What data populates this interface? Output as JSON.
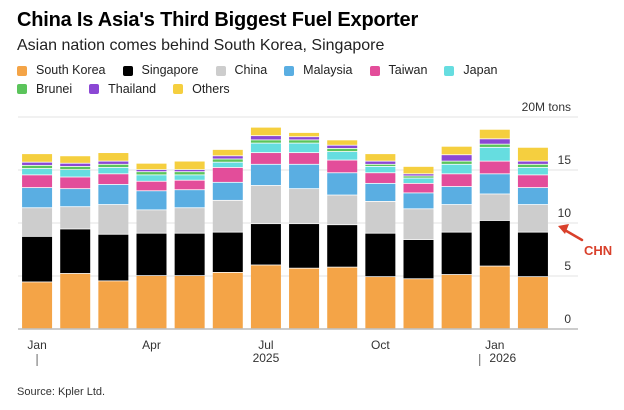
{
  "title": "China Is Asia's Third Biggest Fuel Exporter",
  "subtitle": "Asian nation comes behind South Korea, Singapore",
  "source": "Source: Kpler Ltd.",
  "annotation": "CHN",
  "colors": {
    "South Korea": "#f4a447",
    "Singapore": "#000000",
    "China": "#cdcdcd",
    "Malaysia": "#5aaee2",
    "Taiwan": "#e34d9a",
    "Japan": "#66dde0",
    "Brunei": "#5bc45b",
    "Thailand": "#8b47d4",
    "Others": "#f5cf3f",
    "annotation": "#d9402b"
  },
  "chart_data": {
    "type": "bar",
    "stacked": true,
    "unit_label": "20M tons",
    "ylim": [
      0,
      20
    ],
    "yticks": [
      "0",
      "5",
      "10",
      "15"
    ],
    "x_ticks": [
      {
        "label": "Jan",
        "index": 0
      },
      {
        "label": "Apr",
        "index": 3
      },
      {
        "label": "Jul",
        "index": 6
      },
      {
        "label": "Oct",
        "index": 9
      },
      {
        "label": "Jan",
        "index": 12
      }
    ],
    "year_labels": [
      {
        "label": "2025",
        "index": 6
      },
      {
        "label": "2026",
        "index": 12
      }
    ],
    "categories": [
      "Jan 2025",
      "Feb 2025",
      "Mar 2025",
      "Apr 2025",
      "May 2025",
      "Jun 2025",
      "Jul 2025",
      "Aug 2025",
      "Sep 2025",
      "Oct 2025",
      "Nov 2025",
      "Dec 2025",
      "Jan 2026",
      "Feb 2026"
    ],
    "series": [
      {
        "name": "South Korea",
        "values": [
          4.4,
          5.2,
          4.5,
          5.0,
          5.0,
          5.3,
          6.0,
          5.7,
          5.8,
          4.9,
          4.7,
          5.1,
          5.9,
          4.9
        ]
      },
      {
        "name": "Singapore",
        "values": [
          4.3,
          4.2,
          4.4,
          4.0,
          4.0,
          3.8,
          3.9,
          4.2,
          4.0,
          4.1,
          3.7,
          4.0,
          4.3,
          4.2
        ]
      },
      {
        "name": "China",
        "values": [
          2.7,
          2.1,
          2.8,
          2.2,
          2.4,
          3.0,
          3.6,
          3.3,
          2.8,
          3.0,
          2.9,
          2.6,
          2.5,
          2.6
        ]
      },
      {
        "name": "Malaysia",
        "values": [
          1.9,
          1.7,
          1.9,
          1.8,
          1.7,
          1.7,
          2.0,
          2.3,
          2.1,
          1.7,
          1.5,
          1.7,
          1.9,
          1.6
        ]
      },
      {
        "name": "Taiwan",
        "values": [
          1.2,
          1.1,
          1.0,
          0.9,
          0.9,
          1.4,
          1.1,
          1.1,
          1.2,
          1.0,
          0.9,
          1.2,
          1.2,
          1.2
        ]
      },
      {
        "name": "Japan",
        "values": [
          0.6,
          0.7,
          0.6,
          0.6,
          0.5,
          0.5,
          0.9,
          0.9,
          0.8,
          0.6,
          0.5,
          0.9,
          1.3,
          0.7
        ]
      },
      {
        "name": "Brunei",
        "values": [
          0.3,
          0.3,
          0.3,
          0.3,
          0.3,
          0.3,
          0.3,
          0.3,
          0.3,
          0.2,
          0.2,
          0.3,
          0.3,
          0.3
        ]
      },
      {
        "name": "Thailand",
        "values": [
          0.3,
          0.3,
          0.3,
          0.2,
          0.2,
          0.3,
          0.4,
          0.3,
          0.3,
          0.3,
          0.2,
          0.6,
          0.5,
          0.3
        ]
      },
      {
        "name": "Others",
        "values": [
          0.8,
          0.7,
          0.8,
          0.6,
          0.8,
          0.6,
          0.8,
          0.4,
          0.5,
          0.7,
          0.7,
          0.8,
          0.9,
          1.3
        ]
      }
    ],
    "grid": true,
    "legend_position": "top"
  }
}
